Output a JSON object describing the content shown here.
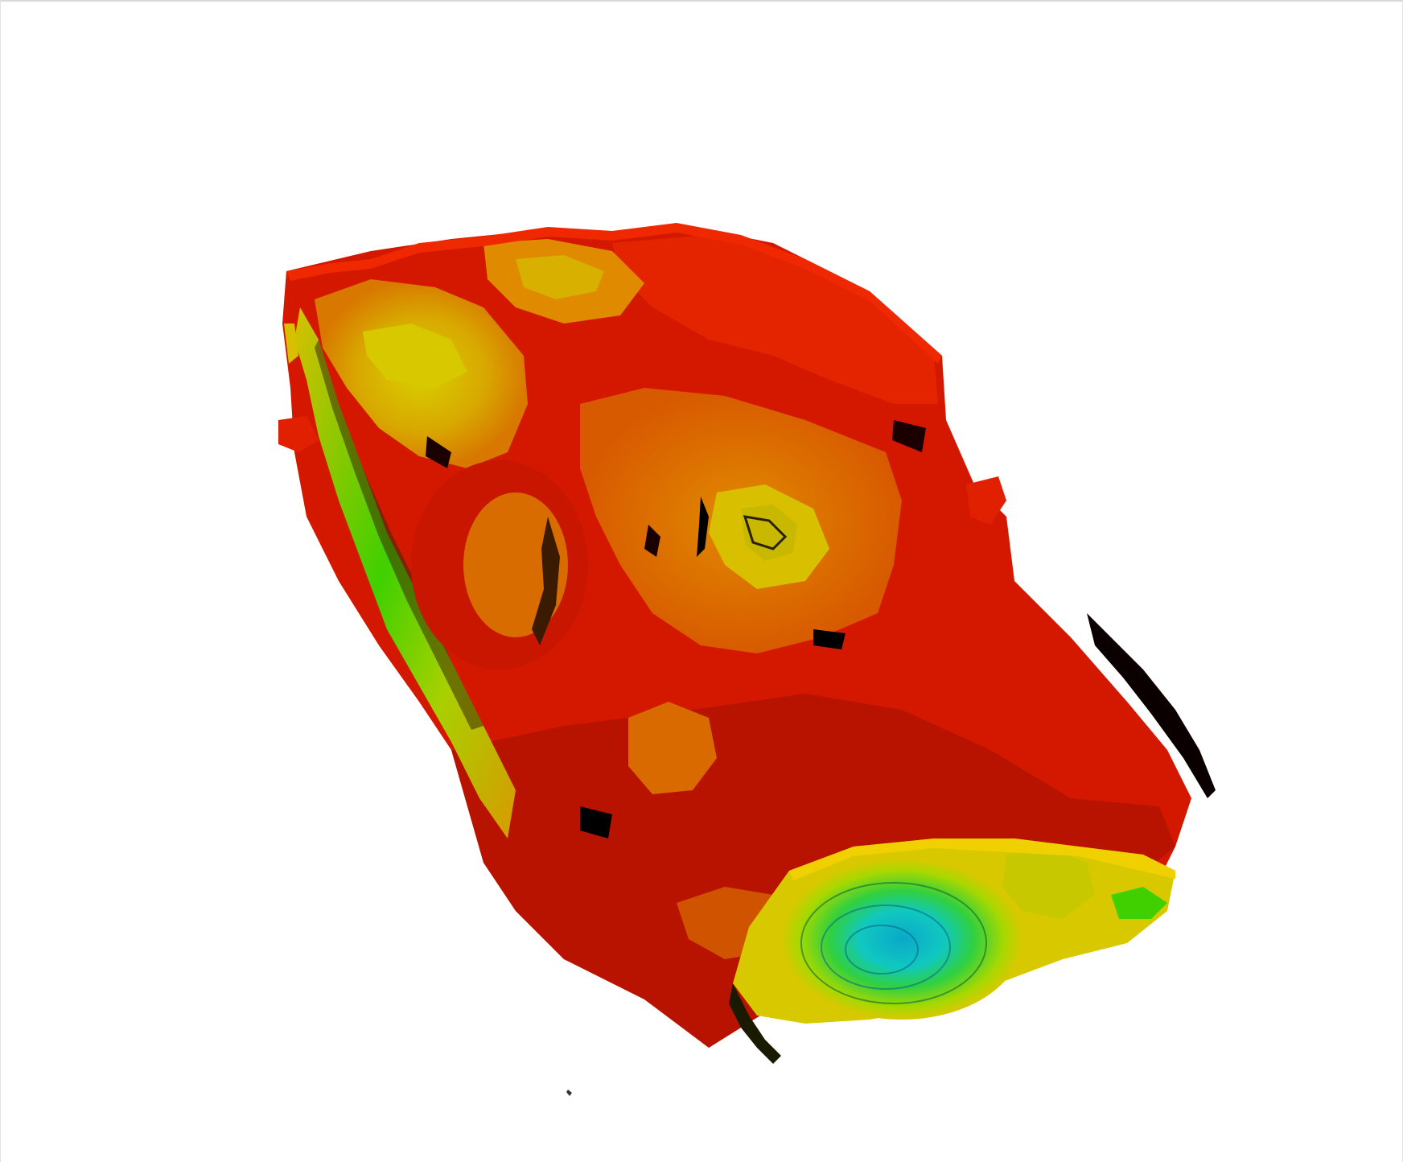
{
  "window": {
    "title": ""
  },
  "viewport": {
    "background": "#ffffff",
    "render": "isosurface-3d",
    "colors": {
      "red": "#e01c00",
      "dark_red": "#b01500",
      "orange": "#e86400",
      "amber": "#d99a00",
      "yellow": "#d8d800",
      "green": "#2ed000",
      "cyan": "#10b8c8",
      "shadow": "#000000"
    }
  }
}
